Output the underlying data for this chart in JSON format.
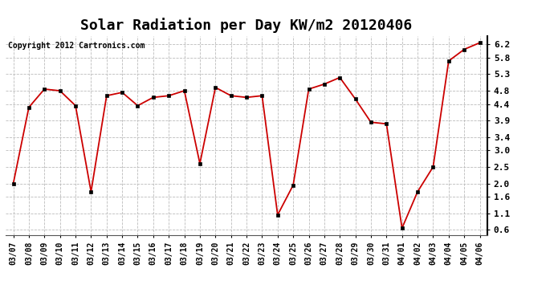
{
  "title": "Solar Radiation per Day KW/m2 20120406",
  "copyright_text": "Copyright 2012 Cartronics.com",
  "x_labels": [
    "03/07",
    "03/08",
    "03/09",
    "03/10",
    "03/11",
    "03/12",
    "03/13",
    "03/14",
    "03/15",
    "03/16",
    "03/17",
    "03/18",
    "03/19",
    "03/20",
    "03/21",
    "03/22",
    "03/23",
    "03/24",
    "03/25",
    "03/26",
    "03/27",
    "03/28",
    "03/29",
    "03/30",
    "03/31",
    "04/01",
    "04/02",
    "04/03",
    "04/04",
    "04/05",
    "04/06"
  ],
  "y_values": [
    2.0,
    4.3,
    4.85,
    4.8,
    4.35,
    1.75,
    4.65,
    4.75,
    4.35,
    4.6,
    4.65,
    4.8,
    2.6,
    4.9,
    4.65,
    4.6,
    4.65,
    1.05,
    1.95,
    4.85,
    5.0,
    5.2,
    4.55,
    3.85,
    3.8,
    0.65,
    1.75,
    2.5,
    5.7,
    6.05,
    6.25
  ],
  "line_color": "#cc0000",
  "marker_color": "#000000",
  "marker_size": 3,
  "line_width": 1.3,
  "y_ticks": [
    0.6,
    1.1,
    1.6,
    2.0,
    2.5,
    3.0,
    3.4,
    3.9,
    4.4,
    4.8,
    5.3,
    5.8,
    6.2
  ],
  "ylim": [
    0.45,
    6.45
  ],
  "bg_color": "#ffffff",
  "grid_color": "#bbbbbb",
  "title_fontsize": 13,
  "copyright_fontsize": 7,
  "tick_fontsize": 7
}
